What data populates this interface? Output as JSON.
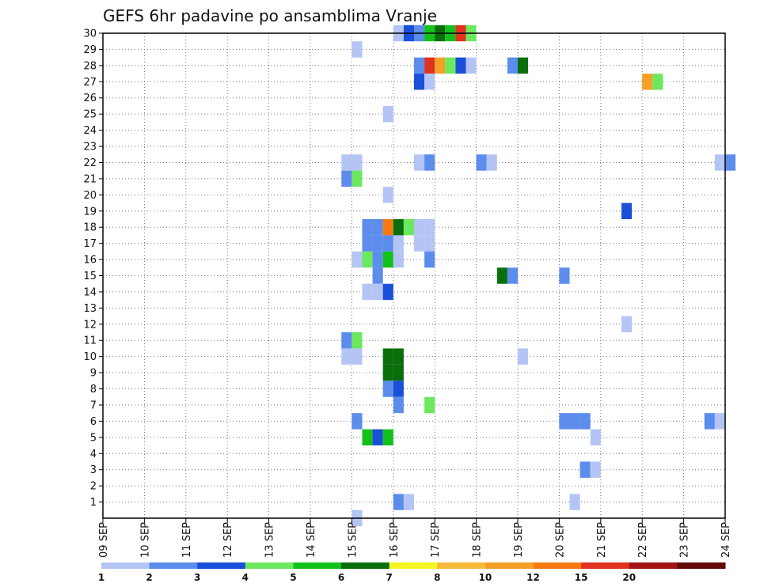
{
  "chart_data": {
    "type": "heatmap",
    "title": "GEFS 6hr padavine po ansamblima Vranje",
    "xlabel": "",
    "ylabel": "",
    "x_tick_labels": [
      "09 SEP",
      "10 SEP",
      "11 SEP",
      "12 SEP",
      "13 SEP",
      "14 SEP",
      "15 SEP",
      "16 SEP",
      "17 SEP",
      "18 SEP",
      "19 SEP",
      "20 SEP",
      "21 SEP",
      "22 SEP",
      "23 SEP",
      "24 SEP"
    ],
    "y_tick_labels": [
      "1",
      "2",
      "3",
      "4",
      "5",
      "6",
      "7",
      "8",
      "9",
      "10",
      "11",
      "12",
      "13",
      "14",
      "15",
      "16",
      "17",
      "18",
      "19",
      "20",
      "21",
      "22",
      "23",
      "24",
      "25",
      "26",
      "27",
      "28",
      "29",
      "30"
    ],
    "xlim_days": [
      0,
      15
    ],
    "ylim": [
      0,
      30
    ],
    "time_step_hours": 6,
    "grid": true,
    "legend_placement": "bottom",
    "legend": {
      "labels": [
        "1",
        "2",
        "3",
        "4",
        "5",
        "6",
        "7",
        "8",
        "10",
        "12",
        "15",
        "20"
      ],
      "colors": [
        "#b4c5f5",
        "#5c8cec",
        "#1a4fd8",
        "#6ce85e",
        "#12c21a",
        "#0a6e0a",
        "#f5f520",
        "#f5ba3a",
        "#f5a028",
        "#f57a14",
        "#e0321e",
        "#a01414",
        "#640a0a"
      ]
    },
    "color_by_category": {
      "1": "#b4c5f5",
      "2": "#5c8cec",
      "3": "#1a4fd8",
      "4": "#6ce85e",
      "5": "#12c21a",
      "6": "#0a6e0a",
      "7": "#f5f520",
      "8": "#f5ba3a",
      "10": "#f5a028",
      "12": "#f57a14",
      "15": "#e0321e",
      "20": "#a01414"
    },
    "cells_note": "each cell: member (y), start time in days after 09 SEP 00Z (x0, 6h wide), precipitation class (v)",
    "cells": [
      {
        "m": 30,
        "x": 7.0,
        "v": "1"
      },
      {
        "m": 30,
        "x": 7.25,
        "v": "3"
      },
      {
        "m": 30,
        "x": 7.5,
        "v": "2"
      },
      {
        "m": 30,
        "x": 7.75,
        "v": "5"
      },
      {
        "m": 30,
        "x": 8.0,
        "v": "6"
      },
      {
        "m": 30,
        "x": 8.25,
        "v": "5"
      },
      {
        "m": 30,
        "x": 8.5,
        "v": "15"
      },
      {
        "m": 30,
        "x": 8.75,
        "v": "4"
      },
      {
        "m": 29,
        "x": 6.0,
        "v": "1"
      },
      {
        "m": 28,
        "x": 7.5,
        "v": "2"
      },
      {
        "m": 28,
        "x": 7.75,
        "v": "15"
      },
      {
        "m": 28,
        "x": 8.0,
        "v": "10"
      },
      {
        "m": 28,
        "x": 8.25,
        "v": "4"
      },
      {
        "m": 28,
        "x": 8.5,
        "v": "3"
      },
      {
        "m": 28,
        "x": 8.75,
        "v": "1"
      },
      {
        "m": 28,
        "x": 9.75,
        "v": "2"
      },
      {
        "m": 28,
        "x": 10.0,
        "v": "6"
      },
      {
        "m": 27,
        "x": 7.5,
        "v": "3"
      },
      {
        "m": 27,
        "x": 7.75,
        "v": "1"
      },
      {
        "m": 27,
        "x": 13.0,
        "v": "10"
      },
      {
        "m": 27,
        "x": 13.25,
        "v": "4"
      },
      {
        "m": 25,
        "x": 6.75,
        "v": "1"
      },
      {
        "m": 22,
        "x": 5.75,
        "v": "1"
      },
      {
        "m": 22,
        "x": 6.0,
        "v": "1"
      },
      {
        "m": 22,
        "x": 7.5,
        "v": "1"
      },
      {
        "m": 22,
        "x": 7.75,
        "v": "2"
      },
      {
        "m": 22,
        "x": 9.0,
        "v": "2"
      },
      {
        "m": 22,
        "x": 9.25,
        "v": "1"
      },
      {
        "m": 22,
        "x": 14.75,
        "v": "1"
      },
      {
        "m": 22,
        "x": 15.0,
        "v": "2"
      },
      {
        "m": 21,
        "x": 5.75,
        "v": "2"
      },
      {
        "m": 21,
        "x": 6.0,
        "v": "4"
      },
      {
        "m": 20,
        "x": 6.75,
        "v": "1"
      },
      {
        "m": 19,
        "x": 12.5,
        "v": "3"
      },
      {
        "m": 18,
        "x": 6.25,
        "v": "2"
      },
      {
        "m": 18,
        "x": 6.5,
        "v": "2"
      },
      {
        "m": 18,
        "x": 6.75,
        "v": "12"
      },
      {
        "m": 18,
        "x": 7.0,
        "v": "6"
      },
      {
        "m": 18,
        "x": 7.25,
        "v": "4"
      },
      {
        "m": 18,
        "x": 7.5,
        "v": "1"
      },
      {
        "m": 18,
        "x": 7.75,
        "v": "1"
      },
      {
        "m": 17,
        "x": 6.25,
        "v": "2"
      },
      {
        "m": 17,
        "x": 6.5,
        "v": "2"
      },
      {
        "m": 17,
        "x": 6.75,
        "v": "2"
      },
      {
        "m": 17,
        "x": 7.0,
        "v": "1"
      },
      {
        "m": 17,
        "x": 7.5,
        "v": "1"
      },
      {
        "m": 17,
        "x": 7.75,
        "v": "1"
      },
      {
        "m": 16,
        "x": 6.0,
        "v": "1"
      },
      {
        "m": 16,
        "x": 6.25,
        "v": "4"
      },
      {
        "m": 16,
        "x": 6.5,
        "v": "2"
      },
      {
        "m": 16,
        "x": 6.75,
        "v": "5"
      },
      {
        "m": 16,
        "x": 7.0,
        "v": "1"
      },
      {
        "m": 16,
        "x": 7.75,
        "v": "2"
      },
      {
        "m": 15,
        "x": 9.5,
        "v": "6"
      },
      {
        "m": 15,
        "x": 9.75,
        "v": "2"
      },
      {
        "m": 15,
        "x": 11.0,
        "v": "2"
      },
      {
        "m": 15,
        "x": 6.5,
        "v": "2"
      },
      {
        "m": 14,
        "x": 6.25,
        "v": "1"
      },
      {
        "m": 14,
        "x": 6.5,
        "v": "1"
      },
      {
        "m": 14,
        "x": 6.75,
        "v": "3"
      },
      {
        "m": 12,
        "x": 12.5,
        "v": "1"
      },
      {
        "m": 11,
        "x": 5.75,
        "v": "2"
      },
      {
        "m": 11,
        "x": 6.0,
        "v": "4"
      },
      {
        "m": 10,
        "x": 5.75,
        "v": "1"
      },
      {
        "m": 10,
        "x": 6.0,
        "v": "1"
      },
      {
        "m": 10,
        "x": 6.75,
        "v": "6"
      },
      {
        "m": 10,
        "x": 7.0,
        "v": "6"
      },
      {
        "m": 10,
        "x": 10.0,
        "v": "1"
      },
      {
        "m": 9,
        "x": 6.75,
        "v": "6"
      },
      {
        "m": 9,
        "x": 7.0,
        "v": "6"
      },
      {
        "m": 8,
        "x": 6.75,
        "v": "2"
      },
      {
        "m": 8,
        "x": 7.0,
        "v": "3"
      },
      {
        "m": 7,
        "x": 7.0,
        "v": "2"
      },
      {
        "m": 7,
        "x": 7.75,
        "v": "4"
      },
      {
        "m": 6,
        "x": 6.0,
        "v": "2"
      },
      {
        "m": 6,
        "x": 11.0,
        "v": "2"
      },
      {
        "m": 6,
        "x": 11.25,
        "v": "2"
      },
      {
        "m": 6,
        "x": 11.5,
        "v": "2"
      },
      {
        "m": 6,
        "x": 14.5,
        "v": "2"
      },
      {
        "m": 6,
        "x": 14.75,
        "v": "1"
      },
      {
        "m": 5,
        "x": 6.25,
        "v": "5"
      },
      {
        "m": 5,
        "x": 6.5,
        "v": "3"
      },
      {
        "m": 5,
        "x": 6.75,
        "v": "5"
      },
      {
        "m": 5,
        "x": 11.75,
        "v": "1"
      },
      {
        "m": 3,
        "x": 11.5,
        "v": "2"
      },
      {
        "m": 3,
        "x": 11.75,
        "v": "1"
      },
      {
        "m": 1,
        "x": 7.0,
        "v": "2"
      },
      {
        "m": 1,
        "x": 7.25,
        "v": "1"
      },
      {
        "m": 1,
        "x": 11.25,
        "v": "1"
      },
      {
        "m": 0,
        "x": 6.0,
        "v": "1"
      }
    ]
  }
}
